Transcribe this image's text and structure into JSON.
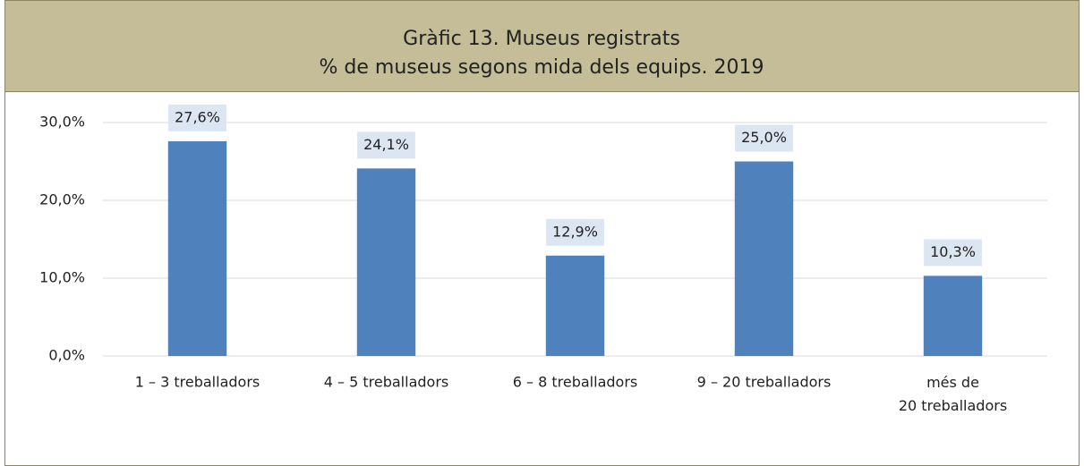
{
  "chart_data": {
    "type": "bar",
    "title": [
      "Gràfic 13. Museus registrats",
      "% de museus segons mida dels equips. 2019"
    ],
    "categories": [
      "1 – 3 treballadors",
      "4 – 5 treballadors",
      "6 – 8 treballadors",
      "9 – 20 treballadors",
      "més de 20 treballadors"
    ],
    "values": [
      27.6,
      24.1,
      12.9,
      25.0,
      10.3
    ],
    "value_labels": [
      "27,6%",
      "24,1%",
      "12,9%",
      "25,0%",
      "10,3%"
    ],
    "color": "#4f81bd",
    "ylim": [
      0,
      30
    ],
    "yticks": [
      {
        "value": 0,
        "label": "0,0%"
      },
      {
        "value": 10,
        "label": "10,0%"
      },
      {
        "value": 20,
        "label": "20,0%"
      },
      {
        "value": 30,
        "label": "30,0%"
      }
    ],
    "grid": true
  }
}
